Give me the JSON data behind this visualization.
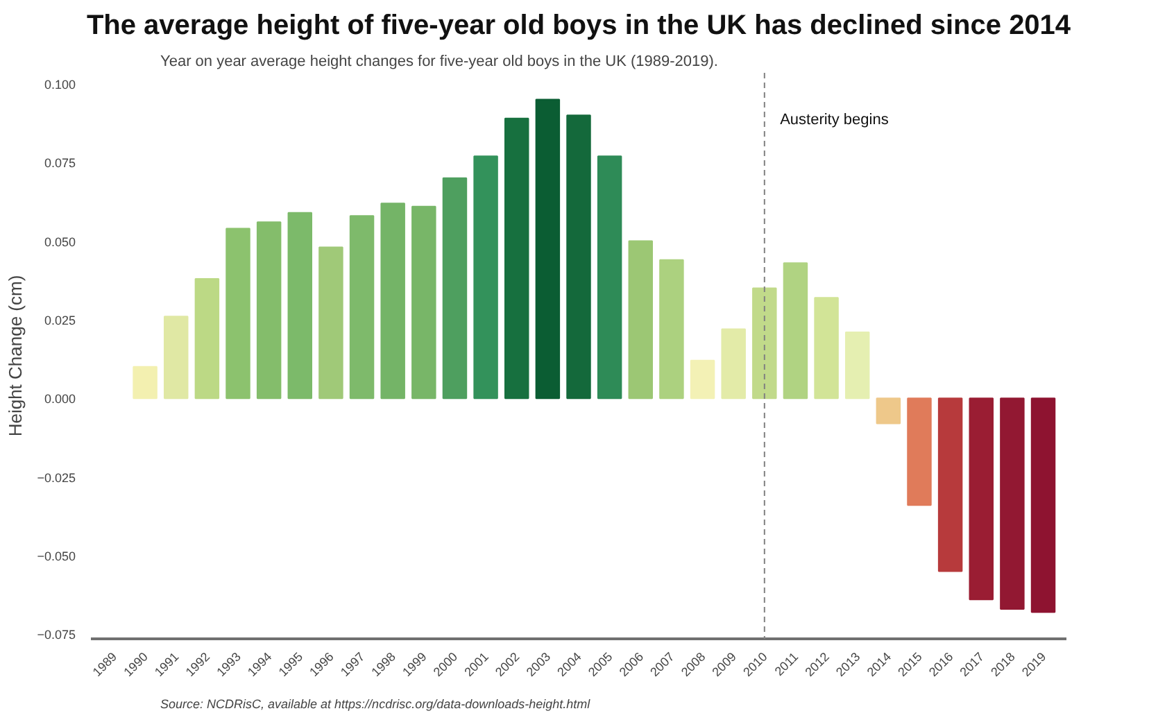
{
  "chart_data": {
    "type": "bar",
    "title": "The average height of five-year old boys in the UK has declined since 2014",
    "subtitle": "Year on year average height changes for five-year old boys in the UK (1989-2019).",
    "ylabel": "Height Change (cm)",
    "annotations": [
      "Source: NCDRisC, available at https://ncdrisc.org/data-downloads-height.html"
    ],
    "categories": [
      "1989",
      "1990",
      "1991",
      "1992",
      "1993",
      "1994",
      "1995",
      "1996",
      "1997",
      "1998",
      "1999",
      "2000",
      "2001",
      "2002",
      "2003",
      "2004",
      "2005",
      "2006",
      "2007",
      "2008",
      "2009",
      "2010",
      "2011",
      "2012",
      "2013",
      "2014",
      "2015",
      "2016",
      "2017",
      "2018",
      "2019"
    ],
    "values": [
      null,
      0.01,
      0.026,
      0.038,
      0.054,
      0.056,
      0.059,
      0.048,
      0.058,
      0.062,
      0.061,
      0.07,
      0.077,
      0.089,
      0.095,
      0.09,
      0.077,
      0.05,
      0.044,
      0.012,
      0.022,
      0.035,
      0.043,
      0.032,
      0.021,
      -0.008,
      -0.034,
      -0.055,
      -0.064,
      -0.067,
      -0.068
    ],
    "colors": [
      null,
      "#f3f0b0",
      "#e0e8a4",
      "#bcd985",
      "#8cc26e",
      "#84bd6b",
      "#7cba6a",
      "#a0c978",
      "#7eba6b",
      "#74b467",
      "#78b668",
      "#4e9f5f",
      "#33925b",
      "#17703f",
      "#0b5d33",
      "#14693b",
      "#2e8b57",
      "#9cc774",
      "#acd17f",
      "#f3f1b5",
      "#e3eba8",
      "#c1da8a",
      "#b0d382",
      "#d2e497",
      "#e5efb1",
      "#eec88a",
      "#e07b5a",
      "#b73a3c",
      "#9a1d33",
      "#921832",
      "#8e1330"
    ],
    "ylim": [
      -0.0765,
      0.1035
    ],
    "yticks": [
      {
        "value": -0.075,
        "label": "−0.075"
      },
      {
        "value": -0.05,
        "label": "−0.050"
      },
      {
        "value": -0.025,
        "label": "−0.025"
      },
      {
        "value": 0,
        "label": "0.000"
      },
      {
        "value": 0.025,
        "label": "0.025"
      },
      {
        "value": 0.05,
        "label": "0.050"
      },
      {
        "value": 0.075,
        "label": "0.075"
      },
      {
        "value": 0.1,
        "label": "0.100"
      }
    ],
    "ref_lines": [
      {
        "axis": "x",
        "value": "2010",
        "label": "Austerity begins",
        "color": "#808080",
        "line_style": "dashed"
      }
    ],
    "grid": false
  }
}
